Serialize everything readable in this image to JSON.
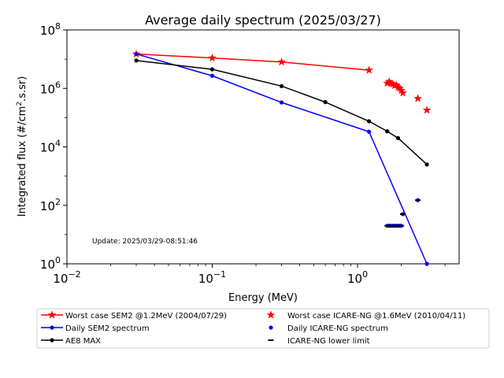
{
  "chart_data": {
    "type": "line",
    "title": "Average daily spectrum (2025/03/27)",
    "xlabel": "Energy (MeV)",
    "ylabel_prefix": "Integrated flux (#/cm",
    "ylabel_sup": "2",
    "ylabel_suffix": ".s.sr)",
    "x_scale": "log",
    "y_scale": "log",
    "xlim": [
      0.01,
      5
    ],
    "ylim": [
      1,
      100000000
    ],
    "x_ticks": [
      {
        "value": 0.01,
        "base": "10",
        "exp": "−2"
      },
      {
        "value": 0.1,
        "base": "10",
        "exp": "−1"
      },
      {
        "value": 1,
        "base": "10",
        "exp": "0"
      }
    ],
    "y_ticks": [
      {
        "value": 1,
        "base": "10",
        "exp": "0"
      },
      {
        "value": 100,
        "base": "10",
        "exp": "2"
      },
      {
        "value": 10000,
        "base": "10",
        "exp": "4"
      },
      {
        "value": 1000000,
        "base": "10",
        "exp": "6"
      },
      {
        "value": 100000000,
        "base": "10",
        "exp": "8"
      }
    ],
    "grid": false,
    "annotation": "Update: 2025/03/29-08:51:46",
    "legend_placement": "below-plot",
    "series": [
      {
        "name": "Worst case SEM2 @1.2MeV (2004/07/29)",
        "color": "#ff0000",
        "marker": "star",
        "line": true,
        "x": [
          0.03,
          0.1,
          0.3,
          1.2
        ],
        "y": [
          15000000,
          11000000,
          8000000,
          4200000
        ]
      },
      {
        "name": "Daily SEM2 spectrum",
        "color": "#0000ff",
        "marker": "dot",
        "line": true,
        "x": [
          0.03,
          0.1,
          0.3,
          1.2,
          3.0
        ],
        "y": [
          15000000,
          2700000,
          330000,
          33000,
          1
        ]
      },
      {
        "name": "AE8 MAX",
        "color": "#000000",
        "marker": "dot",
        "line": true,
        "x": [
          0.03,
          0.1,
          0.3,
          0.6,
          1.2,
          1.6,
          1.9,
          3.0
        ],
        "y": [
          9000000,
          4500000,
          1200000,
          340000,
          75000,
          34000,
          20000,
          2500
        ]
      },
      {
        "name": "Worst case ICARE-NG @1.6MeV (2010/04/11)",
        "color": "#ff0000",
        "marker": "star",
        "line": false,
        "x": [
          1.6,
          1.65,
          1.7,
          1.75,
          1.8,
          1.85,
          1.9,
          1.95,
          2.0,
          2.05,
          2.6,
          3.0
        ],
        "y": [
          1500000,
          1700000,
          1450000,
          1400000,
          1250000,
          1300000,
          1100000,
          1000000,
          850000,
          700000,
          450000,
          180000
        ]
      },
      {
        "name": "Daily ICARE-NG spectrum",
        "color": "#0000ff",
        "marker": "dot",
        "line": false,
        "x": [
          1.6,
          1.65,
          1.7,
          1.75,
          1.8,
          1.85,
          1.9,
          1.95,
          2.0,
          2.05,
          2.6
        ],
        "y": [
          20,
          20,
          20,
          20,
          20,
          20,
          20,
          20,
          20,
          50,
          150
        ]
      },
      {
        "name": "ICARE-NG lower limit",
        "color": "#000000",
        "marker": "hline",
        "line": false,
        "x": [
          1.6,
          1.65,
          1.7,
          1.75,
          1.8,
          1.85,
          1.9,
          1.95,
          2.0,
          2.05,
          2.6
        ],
        "y": [
          20,
          20,
          20,
          20,
          20,
          20,
          20,
          20,
          20,
          50,
          150
        ]
      }
    ]
  }
}
